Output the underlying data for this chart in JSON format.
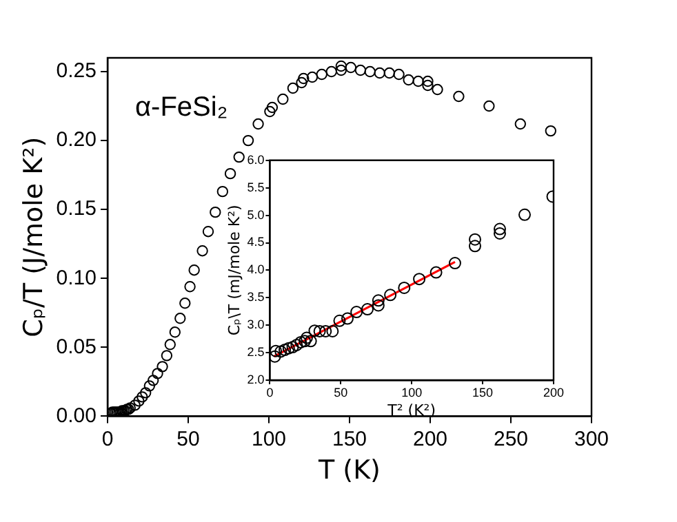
{
  "chart_data": [
    {
      "type": "scatter",
      "xlabel": "T (K)",
      "ylabel": "Cₚ/T (J/mole K²)",
      "annotations": [
        "α-FeSi₂"
      ],
      "marker": "circle",
      "color": "#000000",
      "x": [
        2,
        3,
        4,
        5,
        6,
        7,
        8,
        9,
        10,
        11,
        12,
        13,
        14,
        17,
        19.4,
        21.5,
        23.6,
        26,
        28.3,
        31,
        34,
        36.7,
        38.8,
        41.8,
        45,
        48,
        51.1,
        53.7,
        58.8,
        62.4,
        66.8,
        71.3,
        76.1,
        81.5,
        87.2,
        93.4,
        100.6,
        102.1,
        108.7,
        114.9,
        120.3,
        121.5,
        126.9,
        132.8,
        138.8,
        144.8,
        144.8,
        150.8,
        156.8,
        162.7,
        168.7,
        174.7,
        180.6,
        186.6,
        192.6,
        198.5,
        198.5,
        204.5,
        217.7,
        236.5,
        255.9,
        274.7
      ],
      "values": [
        0.002,
        0.003,
        0.003,
        0.003,
        0.003,
        0.003,
        0.003,
        0.004,
        0.004,
        0.004,
        0.005,
        0.005,
        0.006,
        0.008,
        0.011,
        0.014,
        0.017,
        0.022,
        0.026,
        0.031,
        0.036,
        0.044,
        0.052,
        0.061,
        0.071,
        0.082,
        0.094,
        0.106,
        0.12,
        0.134,
        0.148,
        0.163,
        0.176,
        0.188,
        0.2,
        0.212,
        0.221,
        0.224,
        0.23,
        0.238,
        0.242,
        0.245,
        0.246,
        0.248,
        0.25,
        0.254,
        0.251,
        0.253,
        0.251,
        0.25,
        0.249,
        0.249,
        0.248,
        0.244,
        0.243,
        0.243,
        0.24,
        0.237,
        0.232,
        0.225,
        0.212,
        0.207
      ],
      "xlim": [
        0,
        300
      ],
      "xticks": [
        0,
        50,
        100,
        150,
        200,
        250,
        300
      ],
      "ylim": [
        0,
        0.26
      ],
      "yticks": [
        {
          "value": 0,
          "label": "0.00"
        },
        {
          "value": 0.05,
          "label": "0.05"
        },
        {
          "value": 0.1,
          "label": "0.10"
        },
        {
          "value": 0.15,
          "label": "0.15"
        },
        {
          "value": 0.2,
          "label": "0.20"
        },
        {
          "value": 0.25,
          "label": "0.25"
        }
      ]
    },
    {
      "type": "scatter",
      "xlabel": "T² (K²)",
      "ylabel": "Cₚ\\T (mJ/mole K²)",
      "series": [
        {
          "marker": "circle",
          "color": "#000000",
          "x": [
            3.5,
            4.2,
            7.7,
            10.5,
            13.3,
            16.1,
            18.9,
            21.8,
            24.6,
            26,
            28.8,
            31.6,
            35.1,
            39.3,
            44.2,
            49.1,
            54.7,
            61.1,
            68.8,
            76.5,
            76.5,
            84.9,
            94.7,
            105.3,
            117.2,
            130.5,
            144.6,
            144.6,
            162.1,
            162.1,
            179.6,
            199.3
          ],
          "values": [
            2.43,
            2.53,
            2.52,
            2.55,
            2.58,
            2.6,
            2.64,
            2.69,
            2.71,
            2.77,
            2.71,
            2.9,
            2.89,
            2.89,
            2.89,
            3.08,
            3.12,
            3.24,
            3.29,
            3.45,
            3.36,
            3.55,
            3.68,
            3.84,
            3.96,
            4.13,
            4.56,
            4.44,
            4.75,
            4.67,
            5.01,
            5.34
          ]
        },
        {
          "type": "line",
          "color": "#ff0000",
          "x": [
            2.8,
            130.5
          ],
          "values": [
            2.43,
            4.15
          ]
        }
      ],
      "xlim": [
        0,
        200
      ],
      "xticks": [
        0,
        50,
        100,
        150,
        200
      ],
      "ylim": [
        2,
        6
      ],
      "yticks": [
        {
          "value": 2,
          "label": "2.0"
        },
        {
          "value": 2.5,
          "label": "2.5"
        },
        {
          "value": 3,
          "label": "3.0"
        },
        {
          "value": 3.5,
          "label": "3.5"
        },
        {
          "value": 4,
          "label": "4.0"
        },
        {
          "value": 4.5,
          "label": "4.5"
        },
        {
          "value": 5,
          "label": "5.0"
        },
        {
          "value": 5.5,
          "label": "5.5"
        },
        {
          "value": 6,
          "label": "6.0"
        }
      ]
    }
  ]
}
